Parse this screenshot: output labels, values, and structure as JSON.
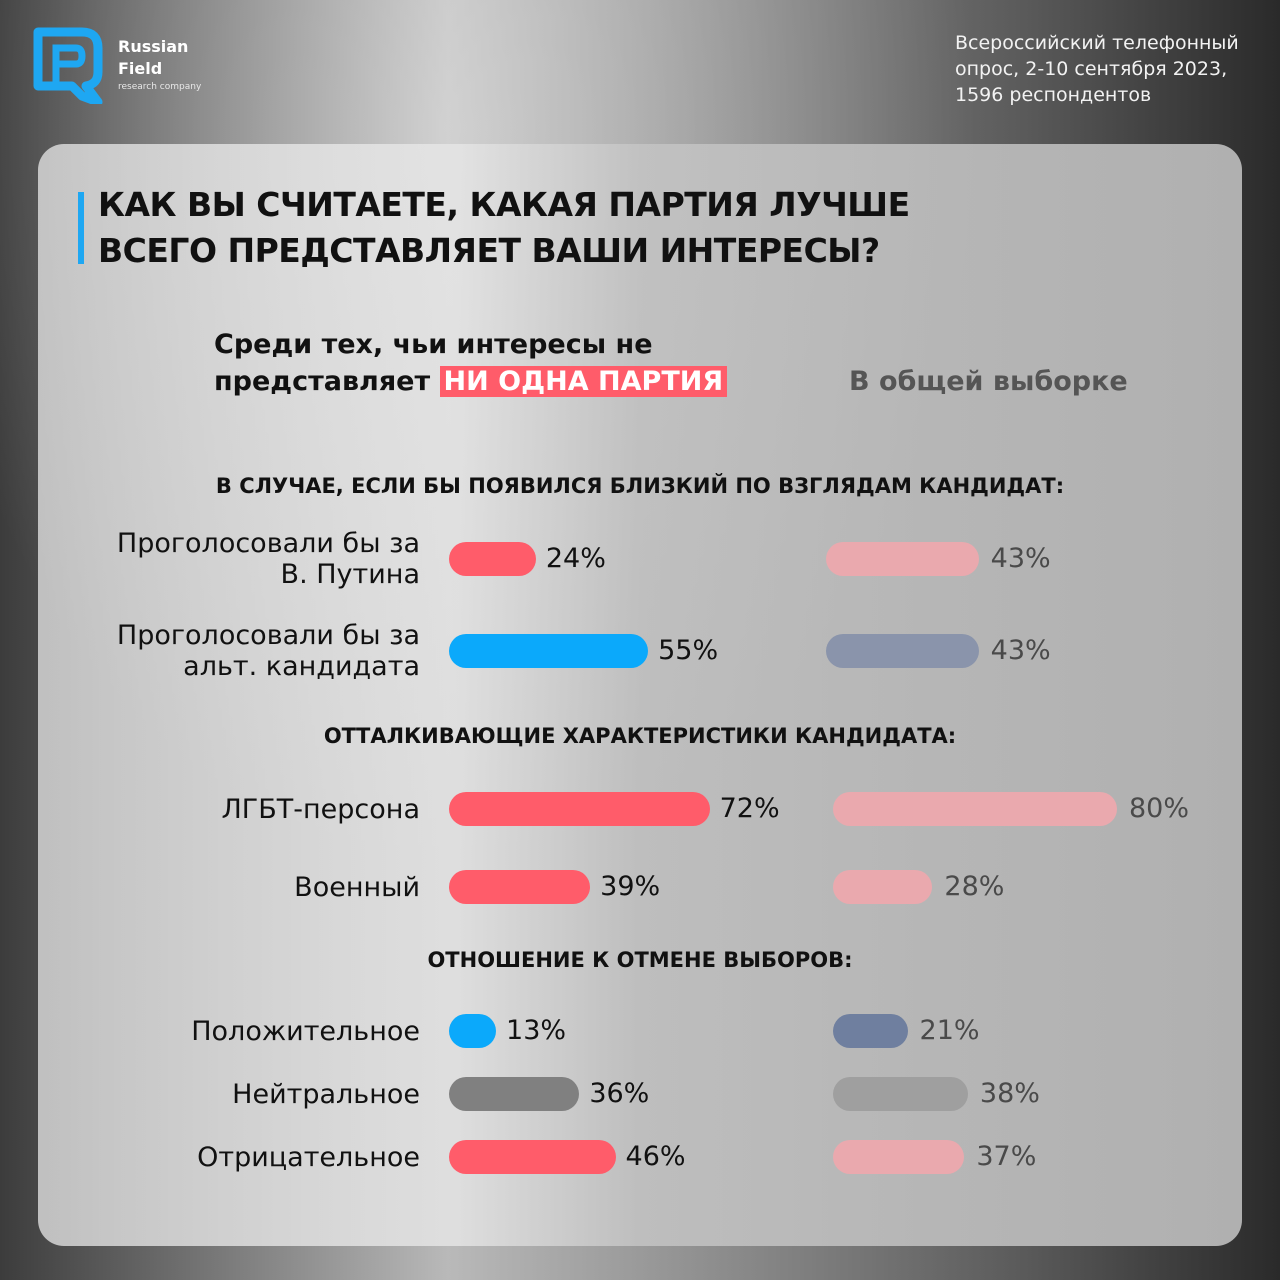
{
  "header": {
    "logo": {
      "line1": "Russian",
      "line2": "Field",
      "line3": "research company"
    },
    "survey_info": [
      "Всероссийский телефонный",
      "опрос, 2-10 сентября 2023,",
      "1596 респондентов"
    ]
  },
  "question": {
    "line1": "КАК ВЫ СЧИТАЕТЕ, КАКАЯ ПАРТИЯ ЛУЧШЕ",
    "line2": "ВСЕГО ПРЕДСТАВЛЯЕТ ВАШИ ИНТЕРЕСЫ?"
  },
  "columns": {
    "left": {
      "line1": "Среди тех, чьи интересы не",
      "line2_prefix": "представляет ",
      "highlight": "НИ ОДНА ПАРТИЯ"
    },
    "right": "В общей выборке"
  },
  "colors": {
    "red": "#ff5c6a",
    "blue": "#0ba9fb",
    "gray": "#808080",
    "pale_red": "#eaa9ae",
    "slate": "#8a94ab",
    "slate_dark": "#6f7f9f",
    "light_gray": "#9f9f9f",
    "highlight_bg": "#ff5c6a",
    "accent": "#1ea7f2"
  },
  "chart_data": {
    "type": "bar",
    "orientation": "horizontal",
    "series": [
      {
        "name": "Среди тех, чьи интересы не представляет НИ ОДНА ПАРТИЯ"
      },
      {
        "name": "В общей выборке"
      }
    ],
    "sections": [
      {
        "title": "В СЛУЧАЕ, ЕСЛИ БЫ ПОЯВИЛСЯ БЛИЗКИЙ ПО ВЗГЛЯДАМ КАНДИДАТ:",
        "rows": [
          {
            "label": [
              "Проголосовали бы за",
              "В. Путина"
            ],
            "values": [
              24,
              43
            ],
            "left_label": "24%",
            "right_label": "43%",
            "colors": [
              "red",
              "pale_red"
            ]
          },
          {
            "label": [
              "Проголосовали бы за",
              "альт. кандидата"
            ],
            "values": [
              55,
              43
            ],
            "left_label": "55%",
            "right_label": "43%",
            "colors": [
              "blue",
              "slate"
            ]
          }
        ]
      },
      {
        "title": "ОТТАЛКИВАЮЩИЕ ХАРАКТЕРИСТИКИ КАНДИДАТА:",
        "rows": [
          {
            "label": [
              "ЛГБТ-персона"
            ],
            "values": [
              72,
              80
            ],
            "left_label": "72%",
            "right_label": "80%",
            "colors": [
              "red",
              "pale_red"
            ]
          },
          {
            "label": [
              "Военный"
            ],
            "values": [
              39,
              28
            ],
            "left_label": "39%",
            "right_label": "28%",
            "colors": [
              "red",
              "pale_red"
            ]
          }
        ]
      },
      {
        "title": "ОТНОШЕНИЕ К ОТМЕНЕ ВЫБОРОВ:",
        "rows": [
          {
            "label": [
              "Положительное"
            ],
            "values": [
              13,
              21
            ],
            "left_label": "13%",
            "right_label": "21%",
            "colors": [
              "blue",
              "slate_dark"
            ]
          },
          {
            "label": [
              "Нейтральное"
            ],
            "values": [
              36,
              38
            ],
            "left_label": "36%",
            "right_label": "38%",
            "colors": [
              "gray",
              "light_gray"
            ]
          },
          {
            "label": [
              "Отрицательное"
            ],
            "values": [
              46,
              37
            ],
            "left_label": "46%",
            "right_label": "37%",
            "colors": [
              "red",
              "pale_red"
            ]
          }
        ]
      }
    ]
  }
}
